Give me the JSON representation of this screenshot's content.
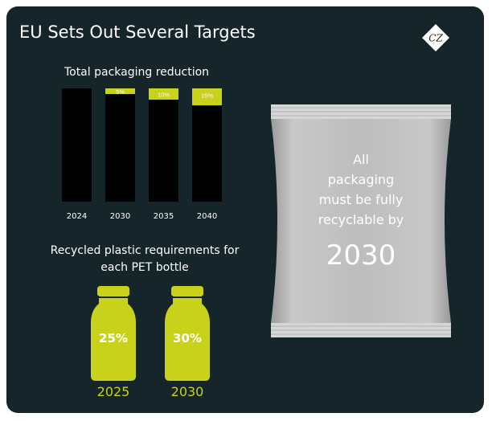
{
  "header": {
    "title": "EU Sets Out Several Targets"
  },
  "logo": {
    "icon": "cz-logo-icon",
    "text": "CZ"
  },
  "chart_data": {
    "type": "bar",
    "title": "Total packaging reduction",
    "categories": [
      "2024",
      "2030",
      "2035",
      "2040"
    ],
    "values": [
      0,
      5,
      10,
      15
    ],
    "labels": [
      "",
      "5%",
      "10%",
      "15%"
    ],
    "unit": "%",
    "colors": {
      "bar": "#000000",
      "reduction": "#c9d21a",
      "label": "#ffffff"
    }
  },
  "bottles": {
    "title_line1": "Recycled plastic requirements for",
    "title_line2": "each PET bottle",
    "color": "#c9d21a",
    "items": [
      {
        "percent": "25%",
        "year": "2025"
      },
      {
        "percent": "30%",
        "year": "2030"
      }
    ]
  },
  "pouch": {
    "line1": "All",
    "line2": "packaging",
    "line3": "must be fully",
    "line4": "recyclable by",
    "year": "2030"
  }
}
